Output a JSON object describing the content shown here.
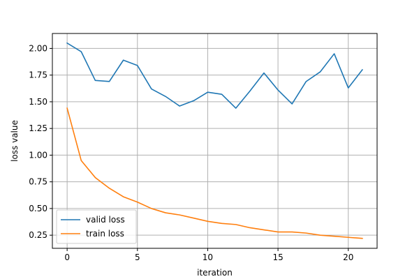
{
  "chart_data": {
    "type": "line",
    "xlabel": "iteration",
    "ylabel": "loss value",
    "xlim": [
      -1.05,
      22.05
    ],
    "ylim": [
      0.127,
      2.14
    ],
    "xticks": [
      0,
      5,
      10,
      15,
      20
    ],
    "yticks": [
      0.25,
      0.5,
      0.75,
      1.0,
      1.25,
      1.5,
      1.75,
      2.0
    ],
    "xtick_labels": [
      "0",
      "5",
      "10",
      "15",
      "20"
    ],
    "ytick_labels": [
      "0.25",
      "0.50",
      "0.75",
      "1.00",
      "1.25",
      "1.50",
      "1.75",
      "2.00"
    ],
    "grid": true,
    "legend_position": "lower-left",
    "x": [
      0,
      1,
      2,
      3,
      4,
      5,
      6,
      7,
      8,
      9,
      10,
      11,
      12,
      13,
      14,
      15,
      16,
      17,
      18,
      19,
      20,
      21
    ],
    "series": [
      {
        "name": "valid loss",
        "color": "#1f77b4",
        "values": [
          2.05,
          1.97,
          1.7,
          1.69,
          1.89,
          1.84,
          1.62,
          1.55,
          1.46,
          1.51,
          1.59,
          1.57,
          1.44,
          1.6,
          1.77,
          1.61,
          1.48,
          1.69,
          1.78,
          1.95,
          1.63,
          1.8
        ]
      },
      {
        "name": "train loss",
        "color": "#ff7f0e",
        "values": [
          1.44,
          0.95,
          0.79,
          0.69,
          0.61,
          0.56,
          0.5,
          0.46,
          0.44,
          0.41,
          0.38,
          0.36,
          0.35,
          0.32,
          0.3,
          0.28,
          0.28,
          0.27,
          0.25,
          0.24,
          0.23,
          0.22
        ]
      }
    ]
  }
}
